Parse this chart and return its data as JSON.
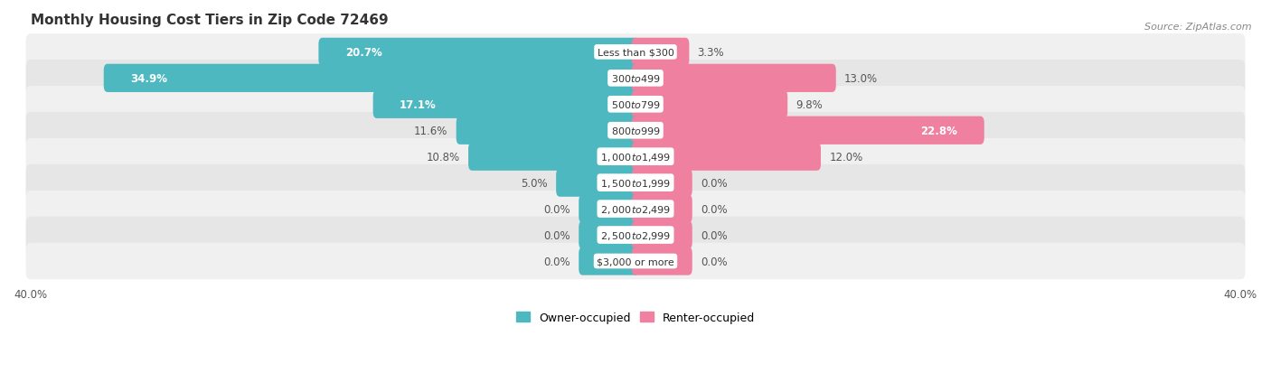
{
  "title": "Monthly Housing Cost Tiers in Zip Code 72469",
  "source": "Source: ZipAtlas.com",
  "categories": [
    "Less than $300",
    "$300 to $499",
    "$500 to $799",
    "$800 to $999",
    "$1,000 to $1,499",
    "$1,500 to $1,999",
    "$2,000 to $2,499",
    "$2,500 to $2,999",
    "$3,000 or more"
  ],
  "owner_values": [
    20.7,
    34.9,
    17.1,
    11.6,
    10.8,
    5.0,
    0.0,
    0.0,
    0.0
  ],
  "renter_values": [
    3.3,
    13.0,
    9.8,
    22.8,
    12.0,
    0.0,
    0.0,
    0.0,
    0.0
  ],
  "owner_color": "#4db8c0",
  "renter_color": "#f080a0",
  "row_light_color": "#f2f2f2",
  "row_dark_color": "#e8e8e8",
  "axis_limit": 40.0,
  "title_fontsize": 11,
  "label_fontsize": 8.5,
  "category_fontsize": 8,
  "source_fontsize": 8,
  "legend_fontsize": 9,
  "background_color": "#ffffff",
  "zero_stub": 3.5
}
